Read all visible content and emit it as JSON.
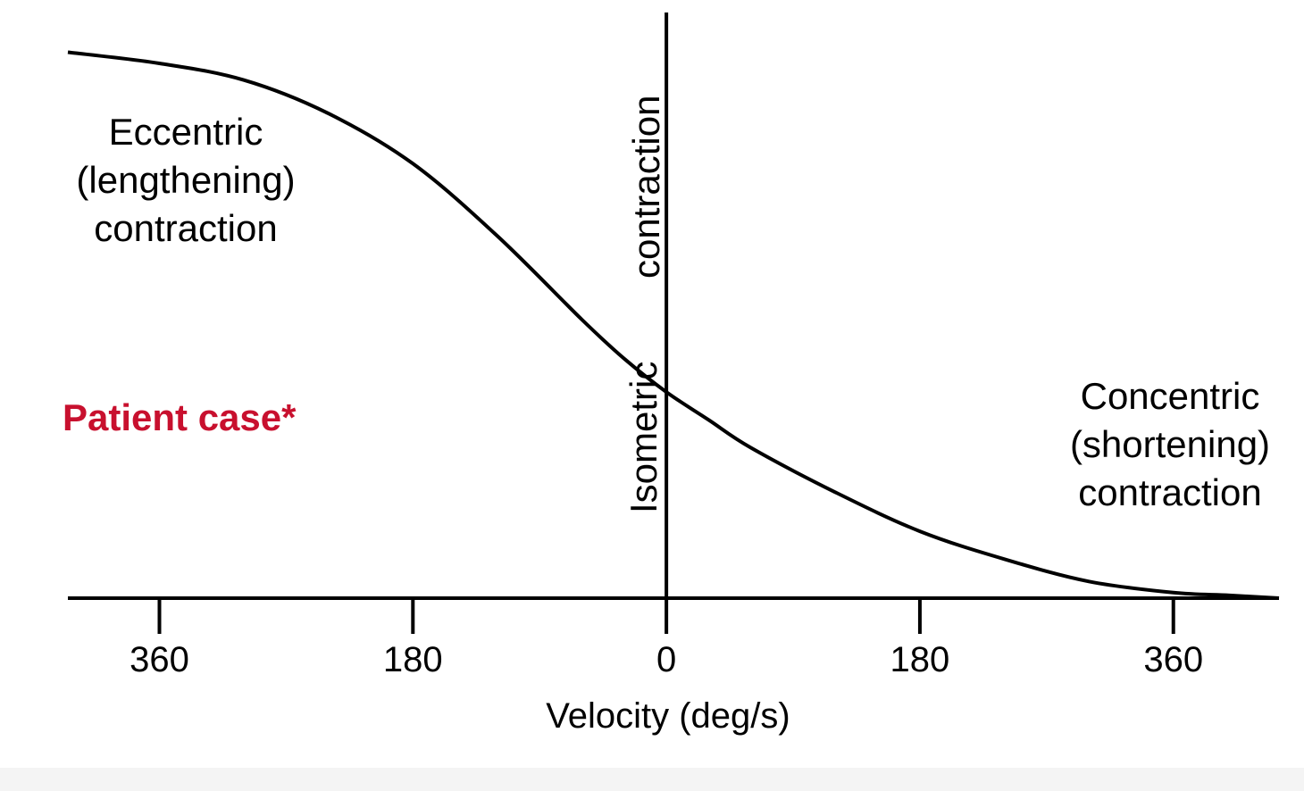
{
  "chart_data": {
    "type": "line",
    "title": "",
    "xlabel": "Velocity (deg/s)",
    "ylabel": "",
    "x_tick_labels": [
      "360",
      "180",
      "0",
      "180",
      "360"
    ],
    "x_tick_values": [
      -360,
      -180,
      0,
      180,
      360
    ],
    "xlim": [
      -425,
      435
    ],
    "ylim": [
      0,
      1
    ],
    "grid": false,
    "series": [
      {
        "x": [
          -425,
          -360,
          -300,
          -240,
          -180,
          -120,
          -60,
          -30,
          0,
          30,
          60,
          120,
          180,
          240,
          300,
          360,
          400,
          435
        ],
        "values": [
          0.98,
          0.96,
          0.93,
          0.87,
          0.78,
          0.65,
          0.5,
          0.43,
          0.37,
          0.32,
          0.27,
          0.19,
          0.12,
          0.07,
          0.03,
          0.01,
          0.005,
          0.0
        ]
      }
    ],
    "region_labels": {
      "eccentric": [
        "Eccentric",
        "(lengthening)",
        "contraction"
      ],
      "isometric": [
        "Isometric",
        "contraction"
      ],
      "concentric": [
        "Concentric",
        "(shortening)",
        "contraction"
      ]
    },
    "annotation": "Patient case*"
  },
  "colors": {
    "line": "#000000",
    "annotation": "#c8102e",
    "background": "#ffffff"
  }
}
